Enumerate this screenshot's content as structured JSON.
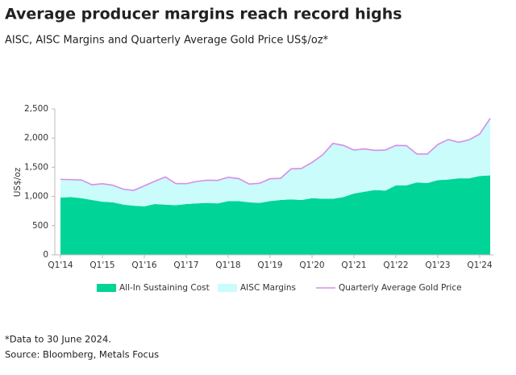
{
  "chart_data": {
    "type": "area",
    "title": "Average producer margins reach record highs",
    "subtitle": "AISC, AISC Margins and Quarterly Average Gold Price US$/oz*",
    "y_label": "US$/oz",
    "categories": [
      "Q1'14",
      null,
      null,
      null,
      "Q1'15",
      null,
      null,
      null,
      "Q1'16",
      null,
      null,
      null,
      "Q1'17",
      null,
      null,
      null,
      "Q1'18",
      null,
      null,
      null,
      "Q1'19",
      null,
      null,
      null,
      "Q1'20",
      null,
      null,
      null,
      "Q1'21",
      null,
      null,
      null,
      "Q1'22",
      null,
      null,
      null,
      "Q1'23",
      null,
      null,
      null,
      "Q1'24",
      null
    ],
    "series": [
      {
        "name": "All-In Sustaining Cost",
        "color": "#00d496",
        "kind": "area",
        "values": [
          980,
          990,
          970,
          940,
          910,
          900,
          860,
          840,
          830,
          870,
          860,
          850,
          870,
          880,
          890,
          880,
          920,
          920,
          900,
          890,
          920,
          940,
          950,
          940,
          970,
          960,
          960,
          990,
          1050,
          1080,
          1110,
          1100,
          1190,
          1190,
          1240,
          1230,
          1280,
          1290,
          1310,
          1310,
          1350,
          1360
        ]
      },
      {
        "name": "AISC Margins",
        "color": "#c9fcfb",
        "kind": "area",
        "values": [
          313,
          298,
          312,
          261,
          308,
          292,
          264,
          265,
          353,
          390,
          475,
          372,
          349,
          377,
          388,
          395,
          409,
          386,
          313,
          336,
          384,
          370,
          522,
          541,
          613,
          751,
          949,
          884,
          744,
          736,
          680,
          695,
          684,
          681,
          489,
          496,
          610,
          686,
          618,
          661,
          720,
          978
        ]
      },
      {
        "name": "Quarterly Average Gold Price",
        "color": "#d98ce8",
        "kind": "line",
        "values": [
          1293,
          1288,
          1282,
          1201,
          1218,
          1192,
          1124,
          1105,
          1183,
          1260,
          1335,
          1222,
          1219,
          1257,
          1278,
          1275,
          1329,
          1306,
          1213,
          1226,
          1304,
          1310,
          1472,
          1481,
          1583,
          1711,
          1909,
          1874,
          1794,
          1816,
          1790,
          1795,
          1874,
          1871,
          1729,
          1726,
          1890,
          1976,
          1928,
          1971,
          2070,
          2338
        ]
      }
    ],
    "ylim": [
      0,
      2500
    ],
    "yticks": [
      0,
      500,
      {
        "value": 1000,
        "label": "1,000"
      },
      {
        "value": 1500,
        "label": "1,500"
      },
      {
        "value": 2000,
        "label": "2,000"
      },
      {
        "value": 2500,
        "label": "2,500"
      }
    ],
    "footnote": "*Data to 30 June 2024.",
    "source": "Source: Bloomberg, Metals Focus"
  }
}
